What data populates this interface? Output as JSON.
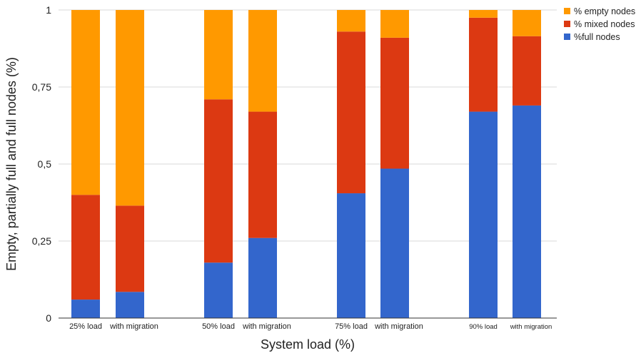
{
  "chart_data": {
    "type": "bar",
    "stacked": true,
    "title": "",
    "xlabel": "System load (%)",
    "ylabel": "Empty, partially full and full nodes (%)",
    "ylim": [
      0,
      1
    ],
    "yticks": [
      "0",
      "0,25",
      "0,5",
      "0,75",
      "1"
    ],
    "ytick_values": [
      0,
      0.25,
      0.5,
      0.75,
      1
    ],
    "grid": true,
    "legend_position": "top-right",
    "groups": [
      {
        "categories": [
          "25% load",
          "with migration"
        ]
      },
      {
        "categories": [
          "50% load",
          "with migration"
        ]
      },
      {
        "categories": [
          "75% load",
          "with migration"
        ]
      },
      {
        "categories": [
          "90% load",
          "with migration"
        ]
      }
    ],
    "categories": [
      "25% load",
      "with migration",
      "50% load",
      "with migration",
      "75% load",
      "with migration",
      "90% load",
      "with migration"
    ],
    "series": [
      {
        "name": "%full nodes",
        "color": "#3366cc",
        "values": [
          0.06,
          0.085,
          0.18,
          0.26,
          0.405,
          0.485,
          0.67,
          0.69
        ]
      },
      {
        "name": "% mixed nodes",
        "color": "#dc3912",
        "values": [
          0.34,
          0.28,
          0.53,
          0.41,
          0.525,
          0.425,
          0.305,
          0.225
        ]
      },
      {
        "name": "% empty nodes",
        "color": "#ff9900",
        "values": [
          0.6,
          0.635,
          0.29,
          0.33,
          0.07,
          0.09,
          0.025,
          0.085
        ]
      }
    ],
    "legend_order": [
      "% empty nodes",
      "% mixed nodes",
      "%full nodes"
    ]
  }
}
